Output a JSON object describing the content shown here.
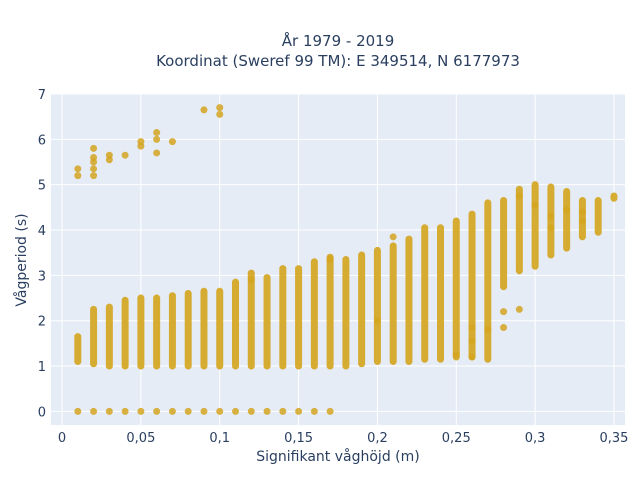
{
  "chart_data": {
    "type": "scatter",
    "title_line1": "År 1979 - 2019",
    "title_line2": "Koordinat (Sweref 99 TM): E 349514, N 6177973",
    "xlabel": "Signifikant våghöjd (m)",
    "ylabel": "Vågperiod (s)",
    "xlim": [
      -0.007,
      0.357
    ],
    "ylim": [
      -0.3,
      7.0
    ],
    "x_ticks": [
      0,
      0.05,
      0.1,
      0.15,
      0.2,
      0.25,
      0.3,
      0.35
    ],
    "x_tick_labels": [
      "0",
      "0,05",
      "0,1",
      "0,15",
      "0,2",
      "0,25",
      "0,3",
      "0,35"
    ],
    "y_ticks": [
      0,
      1,
      2,
      3,
      4,
      5,
      6,
      7
    ],
    "y_tick_labels": [
      "0",
      "1",
      "2",
      "3",
      "4",
      "5",
      "6",
      "7"
    ],
    "grid": true,
    "marker_color": "#d4a520",
    "plot_bg": "#e5ecf6",
    "columns": [
      {
        "x": 0.01,
        "y_min": 1.1,
        "y_max": 1.65
      },
      {
        "x": 0.02,
        "y_min": 1.05,
        "y_max": 2.25
      },
      {
        "x": 0.03,
        "y_min": 1.0,
        "y_max": 2.3
      },
      {
        "x": 0.04,
        "y_min": 1.0,
        "y_max": 2.45
      },
      {
        "x": 0.05,
        "y_min": 1.0,
        "y_max": 2.5
      },
      {
        "x": 0.06,
        "y_min": 1.0,
        "y_max": 2.5
      },
      {
        "x": 0.07,
        "y_min": 1.0,
        "y_max": 2.55
      },
      {
        "x": 0.08,
        "y_min": 1.0,
        "y_max": 2.6
      },
      {
        "x": 0.09,
        "y_min": 1.0,
        "y_max": 2.65
      },
      {
        "x": 0.1,
        "y_min": 1.0,
        "y_max": 2.65
      },
      {
        "x": 0.11,
        "y_min": 1.0,
        "y_max": 2.85
      },
      {
        "x": 0.12,
        "y_min": 1.0,
        "y_max": 3.05
      },
      {
        "x": 0.13,
        "y_min": 1.0,
        "y_max": 2.95
      },
      {
        "x": 0.14,
        "y_min": 1.0,
        "y_max": 3.15
      },
      {
        "x": 0.15,
        "y_min": 1.0,
        "y_max": 3.15
      },
      {
        "x": 0.16,
        "y_min": 1.0,
        "y_max": 3.3
      },
      {
        "x": 0.17,
        "y_min": 1.0,
        "y_max": 3.4
      },
      {
        "x": 0.18,
        "y_min": 1.0,
        "y_max": 3.35
      },
      {
        "x": 0.19,
        "y_min": 1.05,
        "y_max": 3.45
      },
      {
        "x": 0.2,
        "y_min": 1.1,
        "y_max": 3.55
      },
      {
        "x": 0.21,
        "y_min": 1.1,
        "y_max": 3.65
      },
      {
        "x": 0.22,
        "y_min": 1.1,
        "y_max": 3.8
      },
      {
        "x": 0.23,
        "y_min": 1.15,
        "y_max": 4.05
      },
      {
        "x": 0.24,
        "y_min": 1.15,
        "y_max": 4.05
      },
      {
        "x": 0.25,
        "y_min": 1.2,
        "y_max": 4.2
      },
      {
        "x": 0.26,
        "y_min": 1.2,
        "y_max": 4.35
      },
      {
        "x": 0.27,
        "y_min": 1.15,
        "y_max": 4.6
      },
      {
        "x": 0.28,
        "y_min": 2.75,
        "y_max": 4.65
      },
      {
        "x": 0.29,
        "y_min": 3.1,
        "y_max": 4.9
      },
      {
        "x": 0.3,
        "y_min": 3.2,
        "y_max": 5.0
      },
      {
        "x": 0.31,
        "y_min": 3.45,
        "y_max": 4.95
      },
      {
        "x": 0.32,
        "y_min": 3.6,
        "y_max": 4.85
      },
      {
        "x": 0.33,
        "y_min": 3.85,
        "y_max": 4.65
      },
      {
        "x": 0.34,
        "y_min": 3.95,
        "y_max": 4.65
      },
      {
        "x": 0.35,
        "y_min": 4.7,
        "y_max": 4.75
      }
    ],
    "points": [
      [
        0.01,
        5.2
      ],
      [
        0.01,
        5.35
      ],
      [
        0.02,
        5.2
      ],
      [
        0.02,
        5.35
      ],
      [
        0.02,
        5.5
      ],
      [
        0.02,
        5.6
      ],
      [
        0.02,
        5.8
      ],
      [
        0.03,
        5.55
      ],
      [
        0.03,
        5.65
      ],
      [
        0.04,
        5.65
      ],
      [
        0.05,
        5.85
      ],
      [
        0.05,
        5.95
      ],
      [
        0.06,
        5.7
      ],
      [
        0.06,
        6.0
      ],
      [
        0.06,
        6.15
      ],
      [
        0.07,
        5.95
      ],
      [
        0.09,
        6.65
      ],
      [
        0.1,
        6.55
      ],
      [
        0.1,
        6.7
      ],
      [
        0.12,
        2.9
      ],
      [
        0.17,
        3.35
      ],
      [
        0.2,
        2.0
      ],
      [
        0.21,
        3.85
      ],
      [
        0.25,
        1.25
      ],
      [
        0.26,
        1.2
      ],
      [
        0.26,
        1.55
      ],
      [
        0.26,
        1.85
      ],
      [
        0.27,
        1.8
      ],
      [
        0.28,
        1.85
      ],
      [
        0.28,
        2.2
      ],
      [
        0.29,
        2.25
      ],
      [
        0.29,
        4.75
      ],
      [
        0.3,
        4.55
      ],
      [
        0.31,
        4.3
      ],
      [
        0.31,
        4.05
      ],
      [
        0.32,
        4.45
      ],
      [
        0.33,
        4.2
      ],
      [
        0.33,
        4.4
      ],
      [
        0.01,
        0
      ],
      [
        0.02,
        0
      ],
      [
        0.03,
        0
      ],
      [
        0.04,
        0
      ],
      [
        0.05,
        0
      ],
      [
        0.06,
        0
      ],
      [
        0.07,
        0
      ],
      [
        0.08,
        0
      ],
      [
        0.09,
        0
      ],
      [
        0.1,
        0
      ],
      [
        0.11,
        0
      ],
      [
        0.12,
        0
      ],
      [
        0.13,
        0
      ],
      [
        0.14,
        0
      ],
      [
        0.15,
        0
      ],
      [
        0.16,
        0
      ],
      [
        0.17,
        0
      ]
    ]
  }
}
